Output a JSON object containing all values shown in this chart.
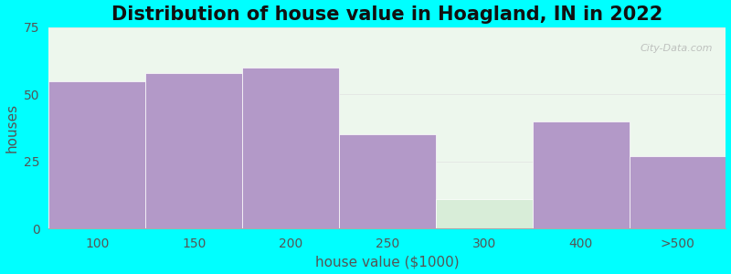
{
  "title": "Distribution of house value in Hoagland, IN in 2022",
  "xlabel": "house value ($1000)",
  "ylabel": "houses",
  "categories": [
    "100",
    "150",
    "200",
    "250",
    "300",
    "400",
    ">500"
  ],
  "values": [
    55,
    58,
    60,
    35,
    11,
    40,
    27
  ],
  "bar_color": "#b399c8",
  "bar_color_light": "#d8edd8",
  "light_bar_index": 4,
  "ylim": [
    0,
    75
  ],
  "yticks": [
    0,
    25,
    50,
    75
  ],
  "background_color": "#00ffff",
  "plot_bg_color": "#edf7ed",
  "title_fontsize": 15,
  "axis_fontsize": 11,
  "tick_fontsize": 10,
  "bar_width": 1.0
}
